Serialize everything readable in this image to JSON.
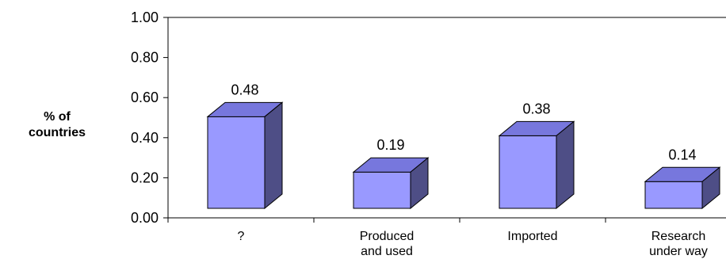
{
  "chart_data": {
    "type": "bar",
    "categories": [
      [
        "?"
      ],
      [
        "Produced",
        "and used"
      ],
      [
        "Imported"
      ],
      [
        "Research",
        "under way"
      ]
    ],
    "values": [
      0.48,
      0.19,
      0.38,
      0.14
    ],
    "value_labels": [
      "0.48",
      "0.19",
      "0.38",
      "0.14"
    ],
    "title": "",
    "xlabel": "",
    "ylabel": [
      "% of",
      "countries"
    ],
    "ylim": [
      0,
      1.0
    ],
    "yticks": [
      "0.00",
      "0.20",
      "0.40",
      "0.60",
      "0.80",
      "1.00"
    ],
    "grid": false,
    "bar_style": "3d",
    "colors": {
      "front": "#9999ff",
      "top": "#7777dd",
      "side": "#4e4e86",
      "outline": "#000000"
    }
  }
}
